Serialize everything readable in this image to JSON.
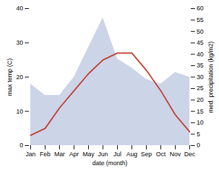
{
  "chart_data": {
    "type": "line",
    "xlabel": "date (month)",
    "ylabel": "max temp (C)",
    "y2label": "med. precipitation (kg/m2)",
    "categories": [
      "Jan",
      "Feb",
      "Mar",
      "Apr",
      "May",
      "Jun",
      "Jul",
      "Aug",
      "Sep",
      "Oct",
      "Nov",
      "Dec"
    ],
    "series": [
      {
        "type": "area",
        "axis": "y2",
        "color": "#aab8d8",
        "values": [
          27,
          22,
          22,
          30,
          43,
          56,
          38,
          34,
          29,
          27,
          32,
          30
        ]
      },
      {
        "type": "line",
        "color": "#c0392b",
        "values": [
          3,
          5,
          11,
          16,
          21,
          25,
          27,
          27,
          22,
          16,
          9,
          4
        ]
      }
    ],
    "ylim": [
      0,
      40
    ],
    "yticks": [
      0,
      10,
      20,
      30,
      40
    ],
    "y2lim": [
      0,
      60
    ],
    "y2ticks": [
      0,
      5,
      10,
      15,
      20,
      25,
      30,
      35,
      40,
      45,
      50,
      55,
      60
    ]
  }
}
